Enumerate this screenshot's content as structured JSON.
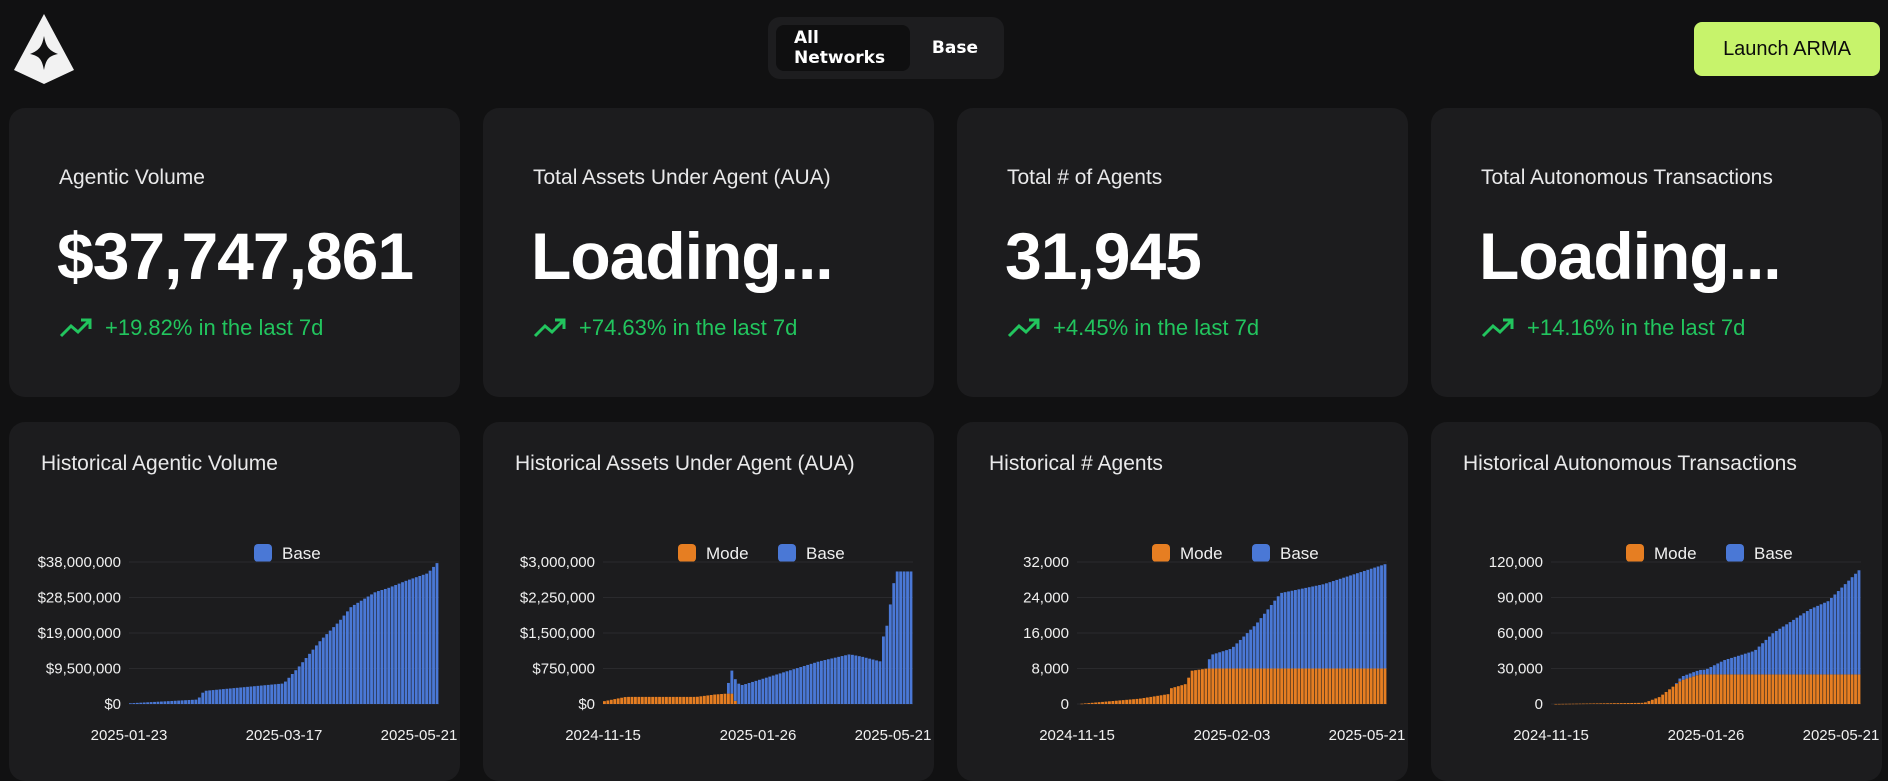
{
  "colors": {
    "mode": "#e67e22",
    "base": "#4a78d6",
    "accent": "#c7f36b",
    "up": "#22c55e"
  },
  "header": {
    "logo": "arma-logo",
    "networks": [
      {
        "label": "All Networks",
        "active": true
      },
      {
        "label": "Base",
        "active": false
      }
    ],
    "launch_label": "Launch ARMA"
  },
  "stats": [
    {
      "title": "Agentic Volume",
      "value": "$37,747,861",
      "change": "+19.82% in the last 7d"
    },
    {
      "title": "Total Assets Under Agent (AUA)",
      "value": "Loading...",
      "change": "+74.63% in the last 7d"
    },
    {
      "title": "Total # of Agents",
      "value": "31,945",
      "change": "+4.45% in the last 7d"
    },
    {
      "title": "Total Autonomous Transactions",
      "value": "Loading...",
      "change": "+14.16% in the last 7d"
    }
  ],
  "chart_data": [
    {
      "type": "bar",
      "title": "Historical Agentic Volume",
      "legend": [
        "Base"
      ],
      "x_labels": [
        "2025-01-23",
        "2025-03-17",
        "2025-05-21"
      ],
      "ylim": [
        0,
        38000000
      ],
      "y_ticks": [
        0,
        9500000,
        19000000,
        28500000,
        38000000
      ],
      "y_tick_labels": [
        "$0",
        "$9,500,000",
        "$19,000,000",
        "$28,500,000",
        "$38,000,000"
      ],
      "series": [
        {
          "name": "Base",
          "color": "#4a78d6",
          "anchors": [
            [
              0,
              0.2
            ],
            [
              0.22,
              1.2
            ],
            [
              0.24,
              3.5
            ],
            [
              0.5,
              5.5
            ],
            [
              0.55,
              10
            ],
            [
              0.62,
              17
            ],
            [
              0.68,
              22
            ],
            [
              0.72,
              26
            ],
            [
              0.8,
              30
            ],
            [
              0.84,
              31
            ],
            [
              0.9,
              33
            ],
            [
              0.97,
              35
            ],
            [
              1.0,
              37.7
            ]
          ],
          "unit": 1000000
        }
      ]
    },
    {
      "type": "bar",
      "title": "Historical Assets Under Agent (AUA)",
      "legend": [
        "Mode",
        "Base"
      ],
      "x_labels": [
        "2024-11-15",
        "2025-01-26",
        "2025-05-21"
      ],
      "ylim": [
        0,
        3000000
      ],
      "y_ticks": [
        0,
        750000,
        1500000,
        2250000,
        3000000
      ],
      "y_tick_labels": [
        "$0",
        "$750,000",
        "$1,500,000",
        "$2,250,000",
        "$3,000,000"
      ],
      "series": [
        {
          "name": "Mode",
          "color": "#e67e22",
          "anchors": [
            [
              0,
              0.06
            ],
            [
              0.07,
              0.15
            ],
            [
              0.3,
              0.15
            ],
            [
              0.36,
              0.2
            ],
            [
              0.4,
              0.22
            ],
            [
              0.42,
              0.22
            ],
            [
              0.43,
              0.0
            ],
            [
              1.0,
              0.0
            ]
          ],
          "unit": 1000000
        },
        {
          "name": "Base",
          "color": "#4a78d6",
          "anchors": [
            [
              0,
              0
            ],
            [
              0.4,
              0
            ],
            [
              0.41,
              0.5
            ],
            [
              0.45,
              0.4
            ],
            [
              0.5,
              0.5
            ],
            [
              0.6,
              0.7
            ],
            [
              0.7,
              0.9
            ],
            [
              0.8,
              1.05
            ],
            [
              0.84,
              1.0
            ],
            [
              0.9,
              0.9
            ],
            [
              0.9,
              1.25
            ],
            [
              0.92,
              1.6
            ],
            [
              0.95,
              2.8
            ],
            [
              1.0,
              2.8
            ]
          ],
          "unit": 1000000
        }
      ]
    },
    {
      "type": "bar",
      "title": "Historical # Agents",
      "legend": [
        "Mode",
        "Base"
      ],
      "x_labels": [
        "2024-11-15",
        "2025-02-03",
        "2025-05-21"
      ],
      "ylim": [
        0,
        32000
      ],
      "y_ticks": [
        0,
        8000,
        16000,
        24000,
        32000
      ],
      "y_tick_labels": [
        "0",
        "8,000",
        "16,000",
        "24,000",
        "32,000"
      ],
      "series": [
        {
          "name": "Mode",
          "color": "#e67e22",
          "anchors": [
            [
              0,
              0
            ],
            [
              0.2,
              1200
            ],
            [
              0.3,
              2300
            ],
            [
              0.3,
              3500
            ],
            [
              0.35,
              4500
            ],
            [
              0.37,
              7500
            ],
            [
              0.42,
              8000
            ],
            [
              1.0,
              8000
            ]
          ],
          "unit": 1
        },
        {
          "name": "Base",
          "color": "#4a78d6",
          "anchors": [
            [
              0,
              0
            ],
            [
              0.42,
              0
            ],
            [
              0.43,
              3000
            ],
            [
              0.5,
              4500
            ],
            [
              0.58,
              10000
            ],
            [
              0.62,
              13500
            ],
            [
              0.66,
              17000
            ],
            [
              0.8,
              19000
            ],
            [
              1.0,
              23500
            ]
          ],
          "unit": 1
        }
      ]
    },
    {
      "type": "bar",
      "title": "Historical Autonomous Transactions",
      "legend": [
        "Mode",
        "Base"
      ],
      "x_labels": [
        "2024-11-15",
        "2025-01-26",
        "2025-05-21"
      ],
      "ylim": [
        0,
        120000
      ],
      "y_ticks": [
        0,
        30000,
        60000,
        90000,
        120000
      ],
      "y_tick_labels": [
        "0",
        "30,000",
        "60,000",
        "90,000",
        "120,000"
      ],
      "series": [
        {
          "name": "Mode",
          "color": "#e67e22",
          "anchors": [
            [
              0,
              0
            ],
            [
              0.3,
              1000
            ],
            [
              0.35,
              6000
            ],
            [
              0.42,
              20000
            ],
            [
              0.48,
              25000
            ],
            [
              1.0,
              25000
            ]
          ],
          "unit": 1
        },
        {
          "name": "Base",
          "color": "#4a78d6",
          "anchors": [
            [
              0,
              0
            ],
            [
              0.4,
              0
            ],
            [
              0.42,
              3000
            ],
            [
              0.5,
              4000
            ],
            [
              0.56,
              12000
            ],
            [
              0.66,
              20000
            ],
            [
              0.72,
              35000
            ],
            [
              0.78,
              45000
            ],
            [
              0.84,
              55000
            ],
            [
              0.9,
              62000
            ],
            [
              0.95,
              75000
            ],
            [
              1.0,
              88000
            ]
          ],
          "unit": 1
        }
      ]
    }
  ]
}
